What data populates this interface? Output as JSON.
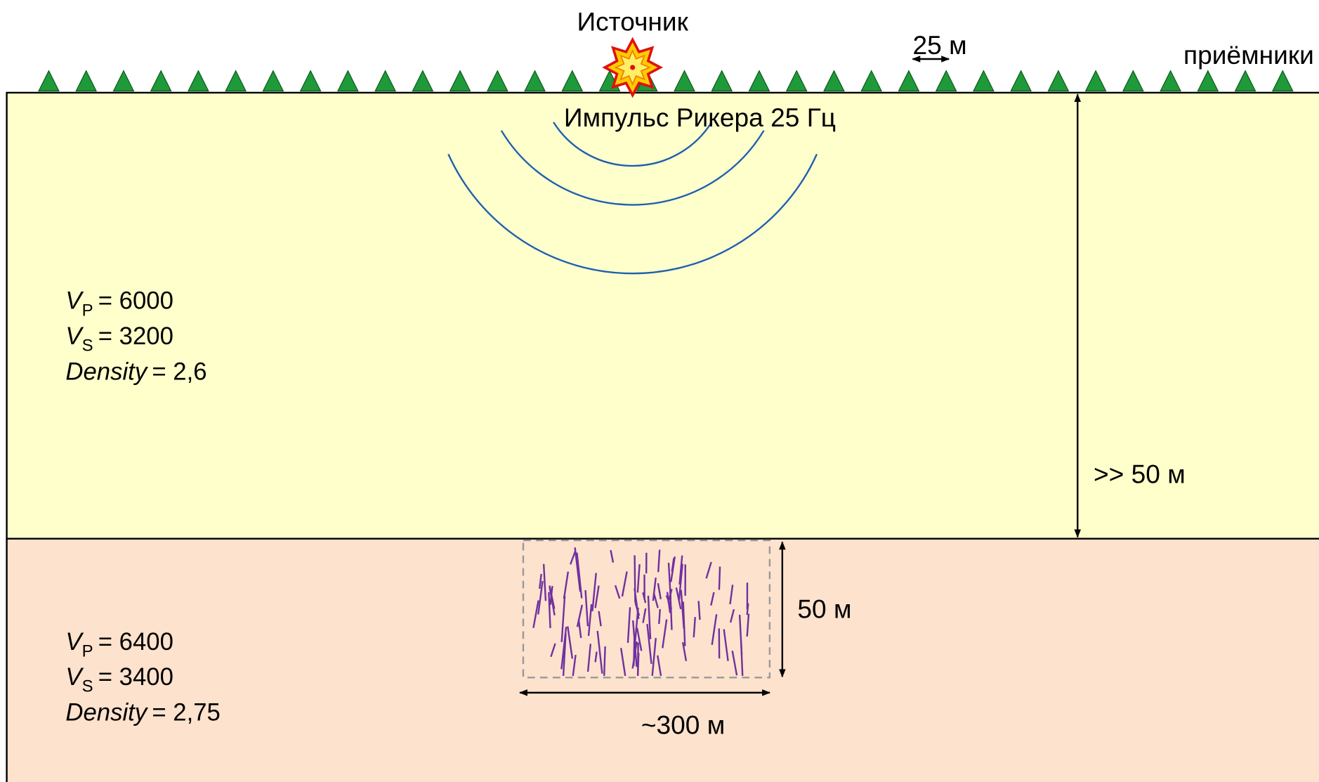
{
  "source": {
    "label": "Источник",
    "pulse": "Импульс Рикера 25 Гц"
  },
  "receivers": {
    "label": "приёмники",
    "spacing": "25 м"
  },
  "layers": [
    {
      "vp": {
        "symbol": "V",
        "sub": "P",
        "value": "= 6000"
      },
      "vs": {
        "symbol": "V",
        "sub": "S",
        "value": "= 3200"
      },
      "density": {
        "symbol": "Density",
        "value": "= 2,6"
      },
      "thickness": ">> 50 м"
    },
    {
      "vp": {
        "symbol": "V",
        "sub": "P",
        "value": "= 6400"
      },
      "vs": {
        "symbol": "V",
        "sub": "S",
        "value": "= 3400"
      },
      "density": {
        "symbol": "Density",
        "value": "= 2,75"
      }
    }
  ],
  "fracture_zone": {
    "height": "50 м",
    "width": "~300 м"
  }
}
